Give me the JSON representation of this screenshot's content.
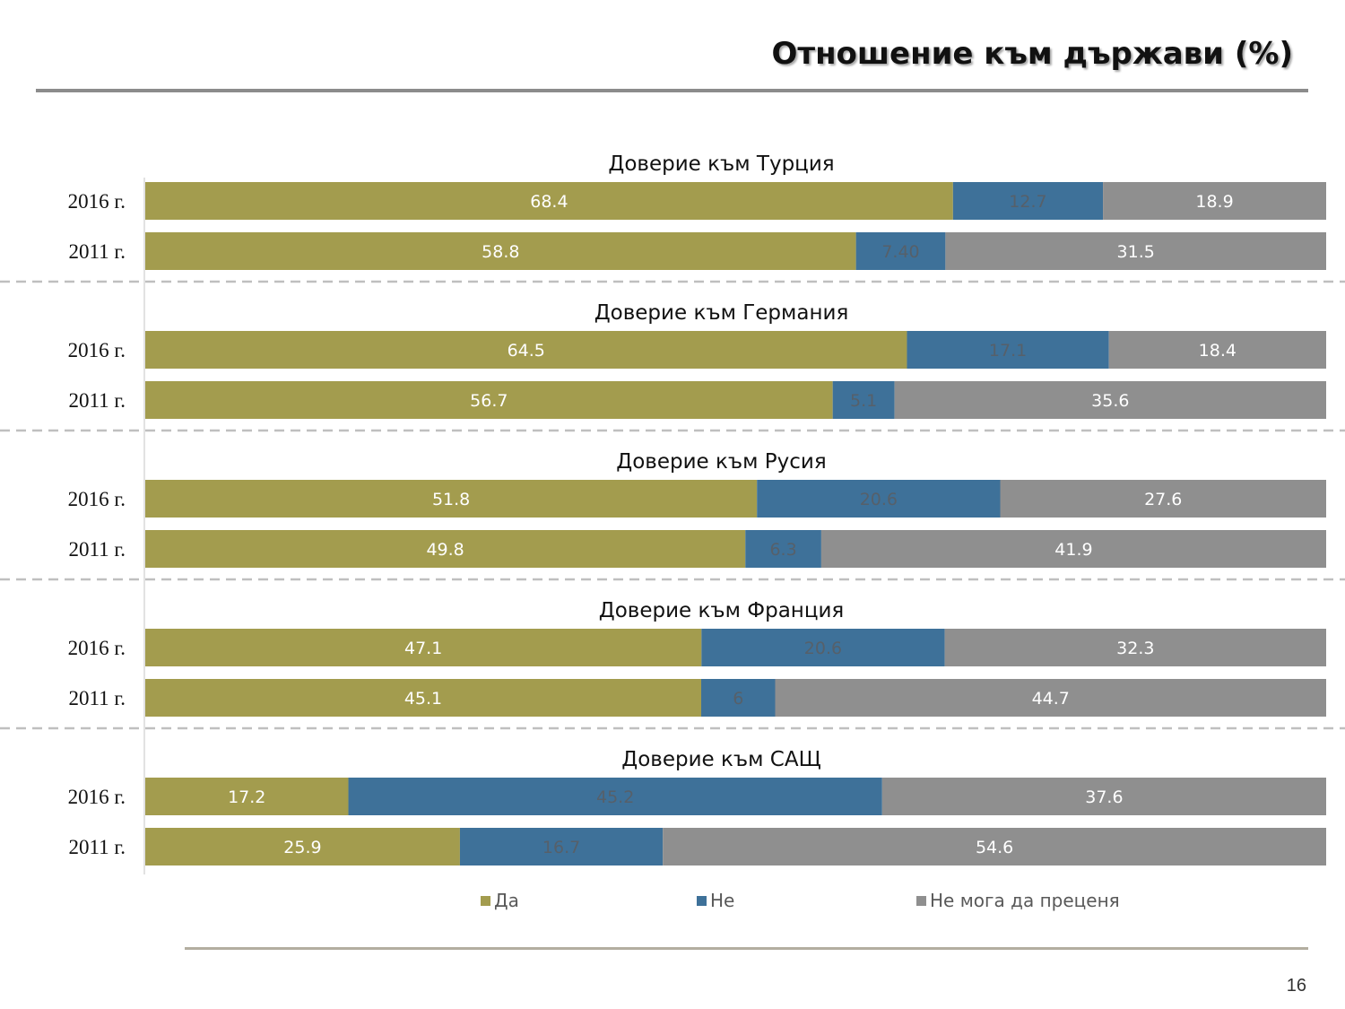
{
  "page": {
    "title": "Отношение към държави (%)",
    "page_number": "16"
  },
  "colors": {
    "yes": "#a39c4e",
    "no": "#3e7199",
    "cannot": "#8f8f8f",
    "label_on_yes": "#ffffff",
    "label_on_no": "#56606a",
    "label_on_cannot": "#ffffff",
    "divider": "#bfbfbf",
    "axis": "#d9d9d9"
  },
  "legend": {
    "items": [
      {
        "key": "yes",
        "label": "Да"
      },
      {
        "key": "no",
        "label": "Не"
      },
      {
        "key": "cannot",
        "label": "Не мога да преценя"
      }
    ]
  },
  "chart_data": {
    "type": "bar",
    "orientation": "horizontal",
    "stacked": true,
    "series": [
      {
        "name": "Да"
      },
      {
        "name": "Не"
      },
      {
        "name": "Не мога да преценя"
      }
    ],
    "xlim": [
      0,
      100
    ],
    "legend_position": "bottom",
    "panels": [
      {
        "title": "Доверие към Турция",
        "rows": [
          {
            "category": "2016 г.",
            "values": [
              68.4,
              12.7,
              18.9
            ],
            "labels": [
              "68.4",
              "12.7",
              "18.9"
            ]
          },
          {
            "category": "2011 г.",
            "values": [
              58.8,
              7.4,
              31.5
            ],
            "labels": [
              "58.8",
              "7.40",
              "31.5"
            ]
          }
        ]
      },
      {
        "title": "Доверие към Германия",
        "rows": [
          {
            "category": "2016 г.",
            "values": [
              64.5,
              17.1,
              18.4
            ],
            "labels": [
              "64.5",
              "17.1",
              "18.4"
            ]
          },
          {
            "category": "2011 г.",
            "values": [
              56.7,
              5.1,
              35.6
            ],
            "labels": [
              "56.7",
              "5.1",
              "35.6"
            ]
          }
        ]
      },
      {
        "title": "Доверие към Русия",
        "rows": [
          {
            "category": "2016 г.",
            "values": [
              51.8,
              20.6,
              27.6
            ],
            "labels": [
              "51.8",
              "20.6",
              "27.6"
            ]
          },
          {
            "category": "2011 г.",
            "values": [
              49.8,
              6.3,
              41.9
            ],
            "labels": [
              "49.8",
              "6.3",
              "41.9"
            ]
          }
        ]
      },
      {
        "title": "Доверие към Франция",
        "rows": [
          {
            "category": "2016 г.",
            "values": [
              47.1,
              20.6,
              32.3
            ],
            "labels": [
              "47.1",
              "20.6",
              "32.3"
            ]
          },
          {
            "category": "2011 г.",
            "values": [
              45.1,
              6,
              44.7
            ],
            "labels": [
              "45.1",
              "6",
              "44.7"
            ]
          }
        ]
      },
      {
        "title": "Доверие към САЩ",
        "rows": [
          {
            "category": "2016 г.",
            "values": [
              17.2,
              45.2,
              37.6
            ],
            "labels": [
              "17.2",
              "45.2",
              "37.6"
            ]
          },
          {
            "category": "2011 г.",
            "values": [
              25.9,
              16.7,
              54.6
            ],
            "labels": [
              "25.9",
              "16.7",
              "54.6"
            ]
          }
        ]
      }
    ]
  }
}
